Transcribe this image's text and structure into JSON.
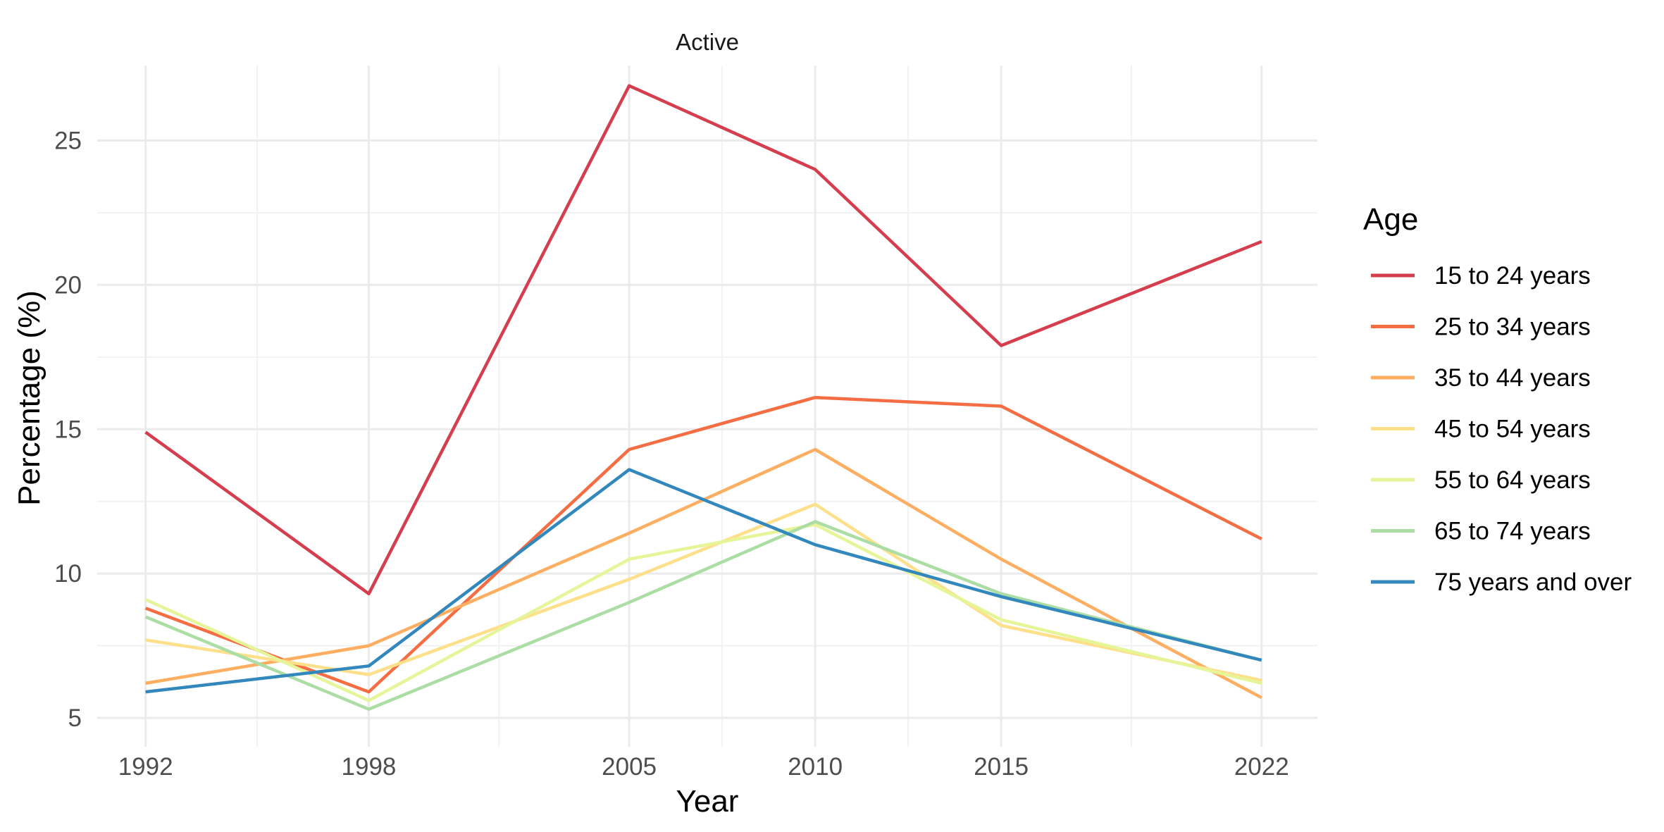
{
  "chart_data": {
    "type": "line",
    "facet_title": "Active",
    "xlabel": "Year",
    "ylabel": "Percentage (%)",
    "x": [
      1992,
      1998,
      2005,
      2010,
      2015,
      2022
    ],
    "x_ticks": [
      1992,
      1998,
      2005,
      2010,
      2015,
      2022
    ],
    "y_ticks": [
      5,
      10,
      15,
      20,
      25
    ],
    "xlim": [
      1990.7,
      2023.5
    ],
    "ylim": [
      4.0,
      27.6
    ],
    "grid": true,
    "legend": {
      "title": "Age",
      "position": "right"
    },
    "series": [
      {
        "name": "15 to 24 years",
        "color": "#d53e4f",
        "values": [
          14.9,
          9.3,
          26.9,
          24.0,
          17.9,
          21.5
        ]
      },
      {
        "name": "25 to 34 years",
        "color": "#f46d43",
        "values": [
          8.8,
          5.9,
          14.3,
          16.1,
          15.8,
          11.2
        ]
      },
      {
        "name": "35 to 44 years",
        "color": "#fdae61",
        "values": [
          6.2,
          7.5,
          11.4,
          14.3,
          10.5,
          5.7
        ]
      },
      {
        "name": "45 to 54 years",
        "color": "#fee08b",
        "values": [
          7.7,
          6.5,
          9.8,
          12.4,
          8.2,
          6.3
        ]
      },
      {
        "name": "55 to 64 years",
        "color": "#e6f598",
        "values": [
          9.1,
          5.6,
          10.5,
          11.7,
          8.4,
          6.2
        ]
      },
      {
        "name": "65 to 74 years",
        "color": "#abdda4",
        "values": [
          8.5,
          5.3,
          9.0,
          11.8,
          9.3,
          7.0
        ]
      },
      {
        "name": "75 years and over",
        "color": "#3288bd",
        "values": [
          5.9,
          6.8,
          13.6,
          11.0,
          9.2,
          7.0
        ]
      }
    ]
  }
}
